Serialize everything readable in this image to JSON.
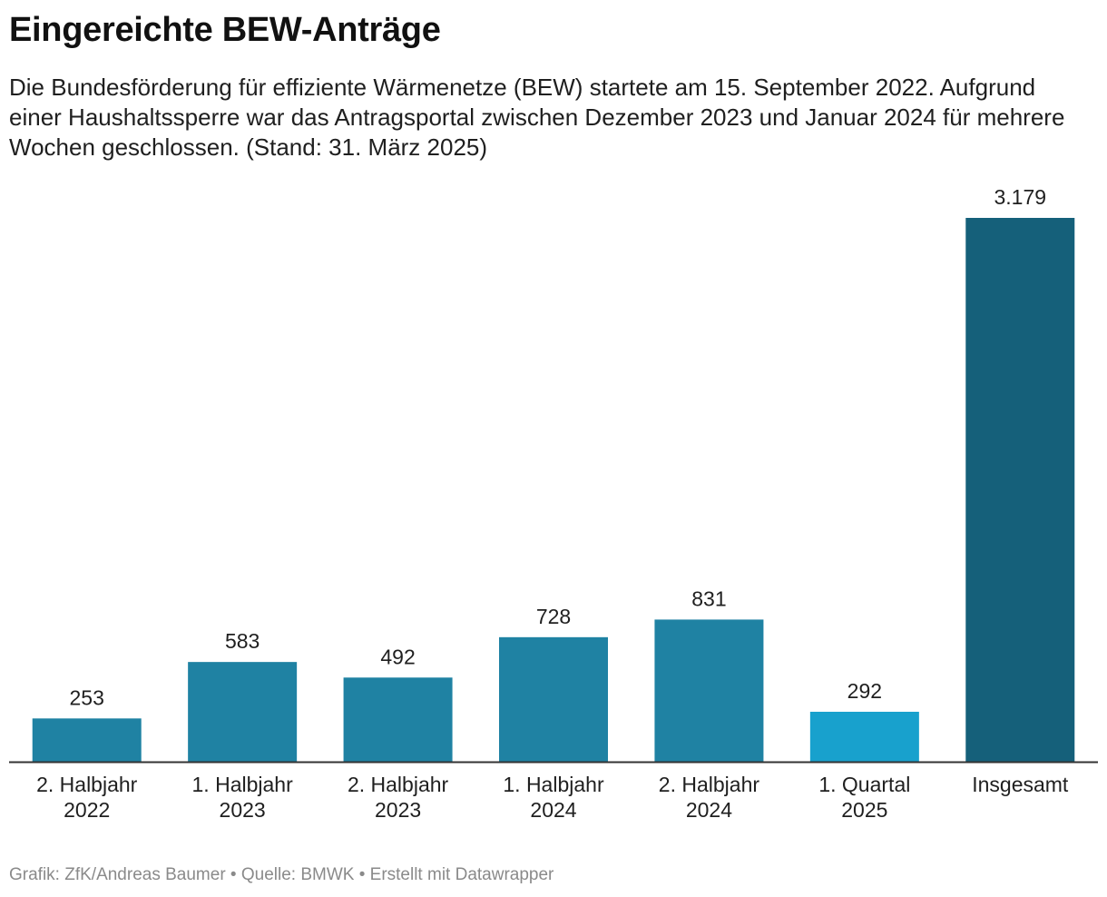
{
  "header": {
    "title": "Eingereichte BEW-Anträge",
    "subtitle": "Die Bundesförderung für effiziente Wärmenetze (BEW) startete am 15. September 2022. Aufgrund einer Haushaltssperre war das Antragsportal zwischen Dezember 2023 und Januar 2024 für mehrere Wochen geschlossen. (Stand: 31. März 2025)"
  },
  "footer": {
    "credit": "Grafik: ZfK/Andreas Baumer • Quelle: BMWK • Erstellt mit Datawrapper"
  },
  "chart_data": {
    "type": "bar",
    "title": "Eingereichte BEW-Anträge",
    "xlabel": "",
    "ylabel": "",
    "ylim": [
      0,
      3179
    ],
    "grid": false,
    "categories": [
      [
        "2. Halbjahr",
        "2022"
      ],
      [
        "1. Halbjahr",
        "2023"
      ],
      [
        "2. Halbjahr",
        "2023"
      ],
      [
        "1. Halbjahr",
        "2024"
      ],
      [
        "2. Halbjahr",
        "2024"
      ],
      [
        "1. Quartal",
        "2025"
      ],
      [
        "Insgesamt"
      ]
    ],
    "values": [
      253,
      583,
      492,
      728,
      831,
      292,
      3179
    ],
    "value_labels": [
      "253",
      "583",
      "492",
      "728",
      "831",
      "292",
      "3.179"
    ],
    "colors": [
      "#1f82a3",
      "#1f82a3",
      "#1f82a3",
      "#1f82a3",
      "#1f82a3",
      "#18a1cd",
      "#15607a"
    ],
    "axis_color": "#333333"
  }
}
